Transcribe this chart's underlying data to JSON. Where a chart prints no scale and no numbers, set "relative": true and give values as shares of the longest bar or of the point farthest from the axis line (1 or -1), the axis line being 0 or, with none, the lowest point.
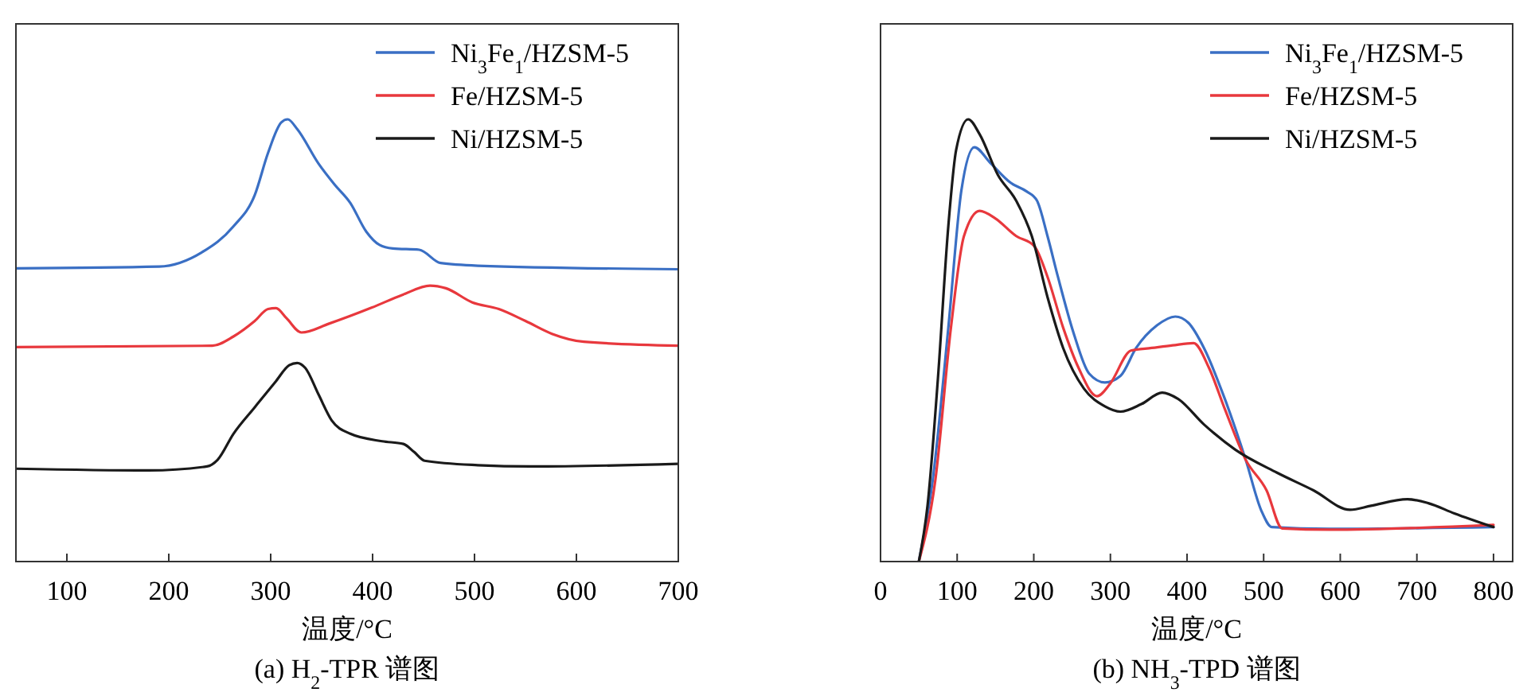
{
  "chart_data": [
    {
      "type": "line",
      "title": "(a) H$_{2}$-TPR 谱图",
      "xlabel": "温度/°C",
      "relative": true,
      "xlim": [
        50,
        700
      ],
      "xticks": [
        100,
        200,
        300,
        400,
        500,
        600,
        700
      ],
      "legend": "top right",
      "series": [
        {
          "name": "Ni$_{3}$Fe$_{1}$/HZSM-5",
          "color": "#3a6fc4",
          "x": [
            50,
            190.6,
            232.3,
            263.5,
            284.4,
            297.4,
            310.4,
            316.7,
            326,
            346.9,
            362.5,
            378.1,
            393.8,
            406.8,
            419.8,
            445.8,
            466.7,
            503.1,
            700
          ],
          "values": [
            0.663,
            0.667,
            0.699,
            0.758,
            0.829,
            0.924,
            0.993,
            1.0,
            0.978,
            0.9,
            0.853,
            0.811,
            0.746,
            0.716,
            0.708,
            0.705,
            0.675,
            0.669,
            0.661
          ]
        },
        {
          "name": "Fe/HZSM-5",
          "color": "#e8383d",
          "x": [
            50,
            242.7,
            263.5,
            284.4,
            297.4,
            305.2,
            315.6,
            330.2,
            357.3,
            399,
            430.2,
            456.3,
            471.9,
            497.9,
            523.9,
            550,
            576,
            607.3,
            700
          ],
          "values": [
            0.485,
            0.488,
            0.509,
            0.544,
            0.571,
            0.573,
            0.55,
            0.518,
            0.538,
            0.574,
            0.604,
            0.624,
            0.618,
            0.586,
            0.571,
            0.544,
            0.515,
            0.497,
            0.488
          ]
        },
        {
          "name": "Ni/HZSM-5",
          "color": "#1a1a1a",
          "x": [
            50,
            180.2,
            237.5,
            247.9,
            263.5,
            284.4,
            305.2,
            318.2,
            326,
            333.9,
            346.9,
            359.9,
            378.1,
            409.4,
            430.2,
            440.6,
            451,
            503.1,
            555.2,
            700
          ],
          "values": [
            0.21,
            0.206,
            0.215,
            0.23,
            0.289,
            0.349,
            0.408,
            0.444,
            0.449,
            0.438,
            0.378,
            0.319,
            0.289,
            0.272,
            0.266,
            0.248,
            0.228,
            0.218,
            0.215,
            0.221
          ]
        }
      ]
    },
    {
      "type": "line",
      "title": "(b) NH$_{3}$-TPD 谱图",
      "xlabel": "温度/°C",
      "relative": true,
      "xlim": [
        0,
        825
      ],
      "xticks": [
        0,
        100,
        200,
        300,
        400,
        500,
        600,
        700,
        800
      ],
      "legend": "top right",
      "series": [
        {
          "name": "Ni$_{3}$Fe$_{1}$/HZSM-5",
          "color": "#3a6fc4",
          "x": [
            50,
            68.1,
            88.5,
            105.5,
            122.5,
            143,
            170.2,
            190.6,
            204.2,
            217.9,
            231.5,
            251.9,
            272.3,
            292.8,
            313.2,
            333.6,
            360.8,
            384.7,
            401.7,
            422.1,
            449.3,
            476.6,
            497,
            510.6,
            585.5,
            800
          ],
          "values": [
            0,
            0.184,
            0.529,
            0.839,
            0.937,
            0.902,
            0.856,
            0.837,
            0.816,
            0.736,
            0.644,
            0.517,
            0.425,
            0.405,
            0.42,
            0.483,
            0.534,
            0.554,
            0.54,
            0.483,
            0.368,
            0.23,
            0.115,
            0.078,
            0.074,
            0.078
          ]
        },
        {
          "name": "Fe/HZSM-5",
          "color": "#e8383d",
          "x": [
            50,
            71.5,
            91.9,
            108.9,
            129.4,
            149.8,
            177,
            200.8,
            217.9,
            238.3,
            258.7,
            282.5,
            299.6,
            326.8,
            354,
            381.3,
            408.5,
            428.9,
            449.3,
            476.6,
            503.8,
            524.2,
            585.5,
            800
          ],
          "values": [
            0,
            0.184,
            0.529,
            0.736,
            0.793,
            0.776,
            0.736,
            0.713,
            0.644,
            0.529,
            0.437,
            0.374,
            0.402,
            0.477,
            0.483,
            0.489,
            0.494,
            0.437,
            0.345,
            0.23,
            0.161,
            0.075,
            0.072,
            0.083
          ]
        },
        {
          "name": "Ni/HZSM-5",
          "color": "#1a1a1a",
          "x": [
            50,
            61.3,
            74.9,
            88.5,
            98.7,
            114.4,
            129.4,
            153.2,
            177,
            197.4,
            217.9,
            238.3,
            265.5,
            292.8,
            313.2,
            340.4,
            367.6,
            388.1,
            422.1,
            463,
            517.4,
            565.1,
            612.7,
            640,
            687.6,
            714.9,
            748.9,
            800
          ],
          "values": [
            0,
            0.126,
            0.414,
            0.759,
            0.931,
            1.0,
            0.966,
            0.874,
            0.816,
            0.736,
            0.598,
            0.483,
            0.391,
            0.351,
            0.339,
            0.356,
            0.382,
            0.368,
            0.31,
            0.253,
            0.201,
            0.161,
            0.117,
            0.126,
            0.141,
            0.132,
            0.109,
            0.078
          ]
        }
      ]
    }
  ]
}
